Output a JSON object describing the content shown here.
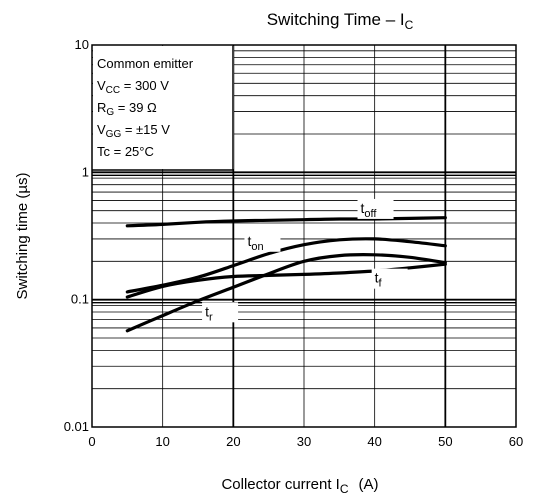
{
  "chart_data": {
    "type": "line",
    "title": "Switching Time – I",
    "title_sub": "C",
    "xlabel": "Collector current  I",
    "xlabel_sub": "C",
    "xlabel_unit": "(A)",
    "ylabel": "Switching time   (µs)",
    "xlim": [
      0,
      60
    ],
    "ylim": [
      0.01,
      10
    ],
    "yscale": "log",
    "grid": true,
    "x_ticks": [
      "0",
      "10",
      "20",
      "30",
      "40",
      "50",
      "60"
    ],
    "y_ticks": [
      "0.01",
      "0.1",
      "1",
      "10"
    ],
    "conditions": {
      "line1": "Common emitter",
      "vcc": {
        "main": "V",
        "sub": "CC",
        "rest": " = 300 V"
      },
      "rg": {
        "main": "R",
        "sub": "G",
        "rest": " = 39 Ω"
      },
      "vgg": {
        "main": "V",
        "sub": "GG",
        "rest": " = ±15 V"
      },
      "line5": "Tc = 25°C"
    },
    "series": [
      {
        "name": "t",
        "name_sub": "off",
        "x": [
          5,
          10,
          15,
          20,
          25,
          30,
          35,
          40,
          45,
          50
        ],
        "y": [
          0.38,
          0.39,
          0.405,
          0.415,
          0.42,
          0.425,
          0.43,
          0.43,
          0.435,
          0.44
        ]
      },
      {
        "name": "t",
        "name_sub": "on",
        "x": [
          5,
          10,
          15,
          20,
          25,
          30,
          35,
          40,
          45,
          50
        ],
        "y": [
          0.115,
          0.13,
          0.15,
          0.185,
          0.23,
          0.27,
          0.295,
          0.3,
          0.285,
          0.265
        ]
      },
      {
        "name": "t",
        "name_sub": "f",
        "x": [
          5,
          10,
          15,
          20,
          25,
          30,
          35,
          40,
          45,
          50
        ],
        "y": [
          0.105,
          0.127,
          0.142,
          0.152,
          0.155,
          0.158,
          0.162,
          0.168,
          0.178,
          0.19
        ]
      },
      {
        "name": "t",
        "name_sub": "r",
        "x": [
          5,
          10,
          15,
          20,
          25,
          30,
          35,
          40,
          45,
          50
        ],
        "y": [
          0.057,
          0.075,
          0.098,
          0.125,
          0.16,
          0.2,
          0.222,
          0.225,
          0.215,
          0.195
        ]
      }
    ]
  }
}
